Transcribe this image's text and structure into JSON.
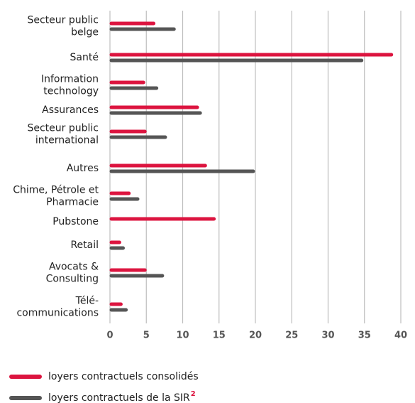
{
  "chart_data": {
    "type": "hbar",
    "categories": [
      "Secteur public\nbelge",
      "Santé",
      "Information\ntechnology",
      "Assurances",
      "Secteur public\ninternational",
      "Autres",
      "Chime, Pétrole et\nPharmacie",
      "Pubstone",
      "Retail",
      "Avocats &\nConsulting",
      "Télé-\ncommunications"
    ],
    "series": [
      {
        "name": "loyers contractuels consolidés",
        "color": "#dc143f",
        "values": [
          6.2,
          38.9,
          4.8,
          12.2,
          5.0,
          13.3,
          2.8,
          14.5,
          1.5,
          5.0,
          1.7
        ]
      },
      {
        "name": "loyers contractuels de la SIR",
        "color": "#555555",
        "values": [
          9.0,
          34.8,
          6.6,
          12.6,
          7.8,
          19.9,
          4.0,
          null,
          2.0,
          7.4,
          2.4
        ]
      }
    ],
    "legend_footnote": "2",
    "xlim": [
      0,
      40
    ],
    "xticks": [
      0,
      5,
      10,
      15,
      20,
      25,
      30,
      35,
      40
    ],
    "grid": true
  }
}
